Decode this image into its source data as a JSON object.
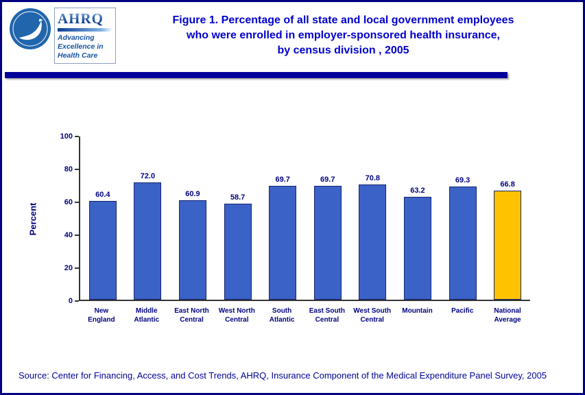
{
  "page": {
    "title_lines": [
      "Figure 1. Percentage of all state and local government employees",
      "who were enrolled in employer-sponsored health insurance,",
      "by census division , 2005"
    ],
    "source": "Source: Center for Financing, Access, and Cost Trends, AHRQ, Insurance Component of the Medical Expenditure Panel Survey, 2005"
  },
  "logos": {
    "ahrq_name": "AHRQ",
    "ahrq_tagline_lines": [
      "Advancing",
      "Excellence in",
      "Health Care"
    ]
  },
  "colors": {
    "title": "#0000CC",
    "source": "#000099",
    "chart_text": "#000080",
    "rule": "#000099",
    "page_border": "#000080",
    "axis": "#333333"
  },
  "chart_data": {
    "type": "bar",
    "title": "",
    "xlabel": "",
    "ylabel": "Percent",
    "ylim": [
      0,
      100
    ],
    "yticks": [
      0,
      20,
      40,
      60,
      80,
      100
    ],
    "grid": false,
    "legend": null,
    "categories": [
      "New England",
      "Middle Atlantic",
      "East North Central",
      "West North Central",
      "South Atlantic",
      "East South Central",
      "West South Central",
      "Mountain",
      "Pacific",
      "National Average"
    ],
    "category_labels": [
      [
        "New",
        "England"
      ],
      [
        "Middle",
        "Atlantic"
      ],
      [
        "East North",
        "Central"
      ],
      [
        "West North",
        "Central"
      ],
      [
        "South",
        "Atlantic"
      ],
      [
        "East South",
        "Central"
      ],
      [
        "West South",
        "Central"
      ],
      [
        "Mountain"
      ],
      [
        "Pacific"
      ],
      [
        "National",
        "Average"
      ]
    ],
    "values": [
      60.4,
      72.0,
      60.9,
      58.7,
      69.7,
      69.7,
      70.8,
      63.2,
      69.3,
      66.8
    ],
    "value_labels": [
      "60.4",
      "72.0",
      "60.9",
      "58.7",
      "69.7",
      "69.7",
      "70.8",
      "63.2",
      "69.3",
      "66.8"
    ],
    "bar_color": "#3B62C6",
    "bar_border": "#14246E",
    "highlight_color": "#FFC200",
    "highlight_index": 9
  }
}
